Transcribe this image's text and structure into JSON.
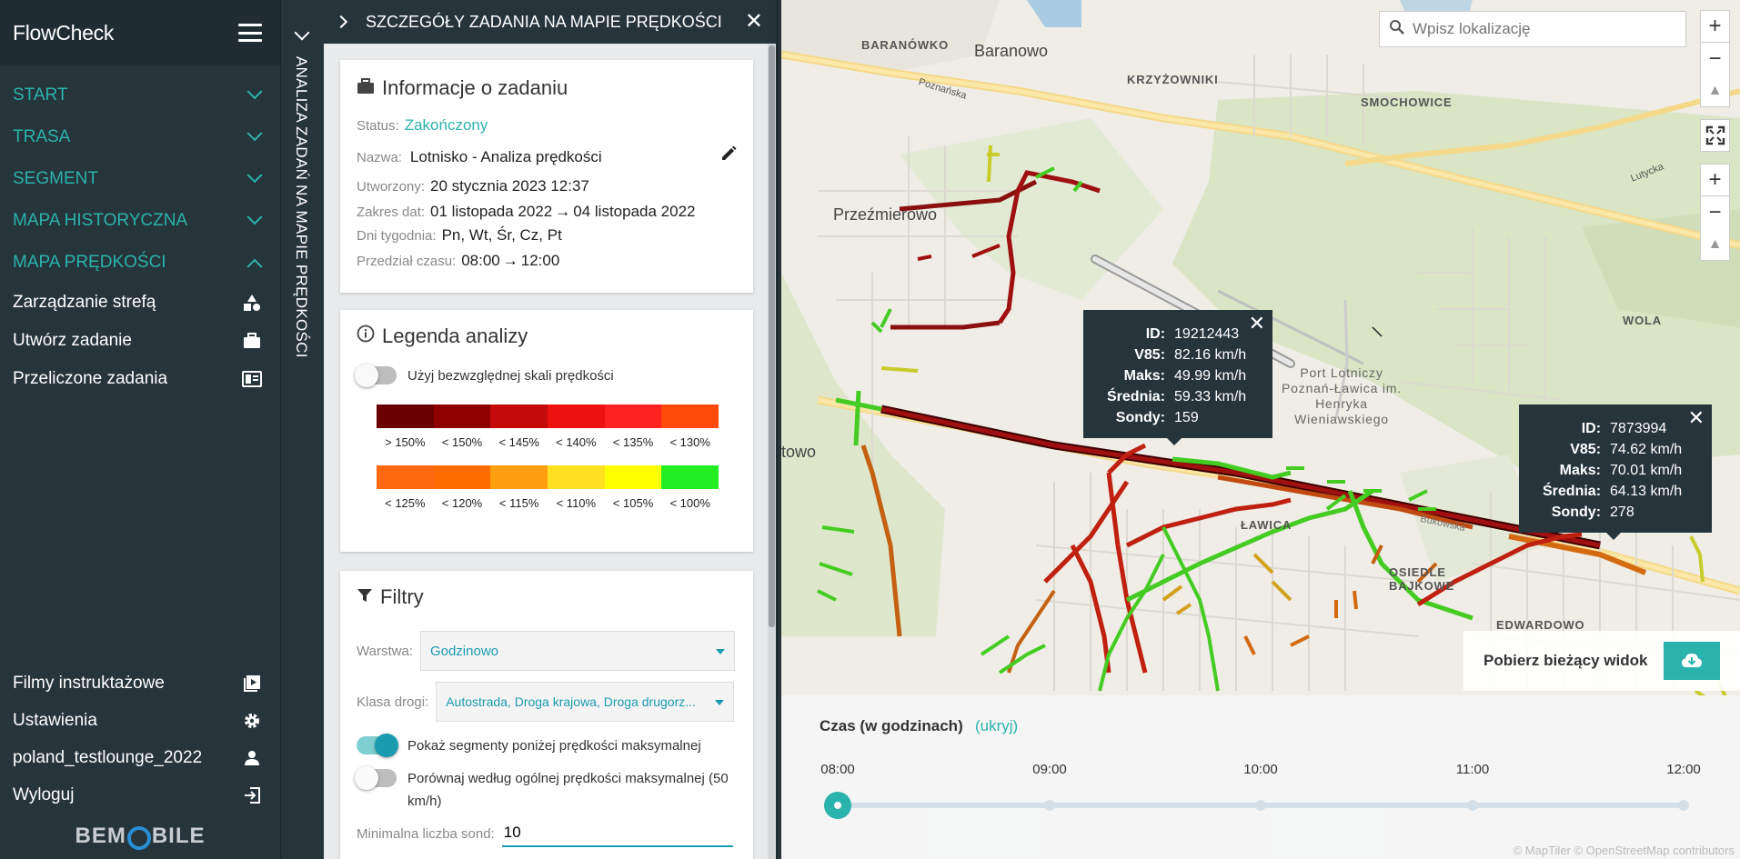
{
  "app": {
    "title": "FlowCheck",
    "logo": "BEMOBILE"
  },
  "sidebar": {
    "sections": [
      {
        "label": "START",
        "expanded": false
      },
      {
        "label": "TRASA",
        "expanded": false
      },
      {
        "label": "SEGMENT",
        "expanded": false
      },
      {
        "label": "MAPA HISTORYCZNA",
        "expanded": false
      },
      {
        "label": "MAPA PRĘDKOŚCI",
        "expanded": true
      }
    ],
    "sub_items": [
      {
        "label": "Zarządzanie strefą",
        "icon": "shapes-icon"
      },
      {
        "label": "Utwórz zadanie",
        "icon": "briefcase-icon"
      },
      {
        "label": "Przeliczone zadania",
        "icon": "list-icon"
      }
    ],
    "bottom_items": [
      {
        "label": "Filmy instruktażowe",
        "icon": "video-icon"
      },
      {
        "label": "Ustawienia",
        "icon": "gear-icon"
      },
      {
        "label": "poland_testlounge_2022",
        "icon": "user-icon"
      },
      {
        "label": "Wyloguj",
        "icon": "logout-icon"
      }
    ]
  },
  "vertical_strip": {
    "label": "ANALIZA ZADAŃ NA MAPIE PRĘDKOŚCI"
  },
  "panel": {
    "title": "SZCZEGÓŁY ZADANIA NA MAPIE PRĘDKOŚCI",
    "info": {
      "title": "Informacje o zadaniu",
      "status_label": "Status:",
      "status_value": "Zakończony",
      "name_label": "Nazwa:",
      "name_value": "Lotnisko - Analiza prędkości",
      "created_label": "Utworzony:",
      "created_value": "20 stycznia 2023 12:37",
      "dates_label": "Zakres dat:",
      "date_from": "01 listopada 2022",
      "date_to": "04 listopada 2022",
      "days_label": "Dni tygodnia:",
      "days_value": "Pn, Wt, Śr, Cz, Pt",
      "time_label": "Przedział czasu:",
      "time_from": "08:00",
      "time_to": "12:00"
    },
    "legend": {
      "title": "Legenda analizy",
      "toggle_label": "Użyj bezwzględnej skali prędkości",
      "toggle_on": false,
      "row1": [
        {
          "label": "> 150%",
          "color": "#6b0000"
        },
        {
          "label": "< 150%",
          "color": "#8e0000"
        },
        {
          "label": "< 145%",
          "color": "#c40a0a"
        },
        {
          "label": "< 140%",
          "color": "#ee1111"
        },
        {
          "label": "< 135%",
          "color": "#ff2222"
        },
        {
          "label": "< 130%",
          "color": "#ff4a0a"
        }
      ],
      "row2": [
        {
          "label": "< 125%",
          "color": "#ff6a10"
        },
        {
          "label": "< 120%",
          "color": "#ff6d00"
        },
        {
          "label": "< 115%",
          "color": "#ff9e10"
        },
        {
          "label": "< 110%",
          "color": "#ffe020"
        },
        {
          "label": "< 105%",
          "color": "#ffff00"
        },
        {
          "label": "< 100%",
          "color": "#22ee22"
        }
      ]
    },
    "filters": {
      "title": "Filtry",
      "layer_label": "Warstwa:",
      "layer_value": "Godzinowo",
      "road_label": "Klasa drogi:",
      "road_value": "Autostrada, Droga krajowa, Droga drugorz...",
      "show_below_label": "Pokaż segmenty poniżej prędkości maksymalnej",
      "show_below_on": true,
      "compare_label": "Porównaj według ogólnej prędkości maksymalnej (50 km/h)",
      "compare_on": false,
      "min_probes_label": "Minimalna liczba sond:",
      "min_probes_value": "10"
    }
  },
  "map": {
    "search_placeholder": "Wpisz lokalizację",
    "places": [
      {
        "name": "BARANÓWKO",
        "big": false
      },
      {
        "name": "Baranowo",
        "big": true
      },
      {
        "name": "KRZYŻOWNIKI",
        "big": false
      },
      {
        "name": "SMOCHOWICE",
        "big": false
      },
      {
        "name": "Przeźmierowo",
        "big": true
      },
      {
        "name": "WOLA",
        "big": false
      },
      {
        "name": "Port Lotniczy Poznań-Ławica im. Henryka Wieniawskiego",
        "big": false
      },
      {
        "name": "ŁAWICA",
        "big": false
      },
      {
        "name": "OSIEDLE BAJKOWE",
        "big": false
      },
      {
        "name": "EDWARDOWO",
        "big": false
      },
      {
        "name": "towo",
        "big": true
      },
      {
        "name": "Poznańska",
        "big": false
      },
      {
        "name": "Lutycka",
        "big": false
      },
      {
        "name": "Bukowska",
        "big": false
      }
    ],
    "popups": [
      {
        "id": "19212443",
        "v85": "82.16 km/h",
        "max": "49.99 km/h",
        "avg": "59.33 km/h",
        "probes": "159"
      },
      {
        "id": "7873994",
        "v85": "74.62 km/h",
        "max": "70.01 km/h",
        "avg": "64.13 km/h",
        "probes": "278"
      }
    ],
    "popup_keys": {
      "id": "ID:",
      "v85": "V85:",
      "max": "Maks:",
      "avg": "Średnia:",
      "probes": "Sondy:"
    },
    "download_label": "Pobierz bieżący widok",
    "attribution": "© MapTiler © OpenStreetMap contributors"
  },
  "timeline": {
    "title": "Czas (w godzinach)",
    "hide_label": "(ukryj)",
    "ticks": [
      "08:00",
      "09:00",
      "10:00",
      "11:00",
      "12:00"
    ],
    "selected": "08:00"
  },
  "colors": {
    "accent": "#2ab3ac",
    "sidebar_bg": "#26343b",
    "popup_bg": "#26343b"
  }
}
